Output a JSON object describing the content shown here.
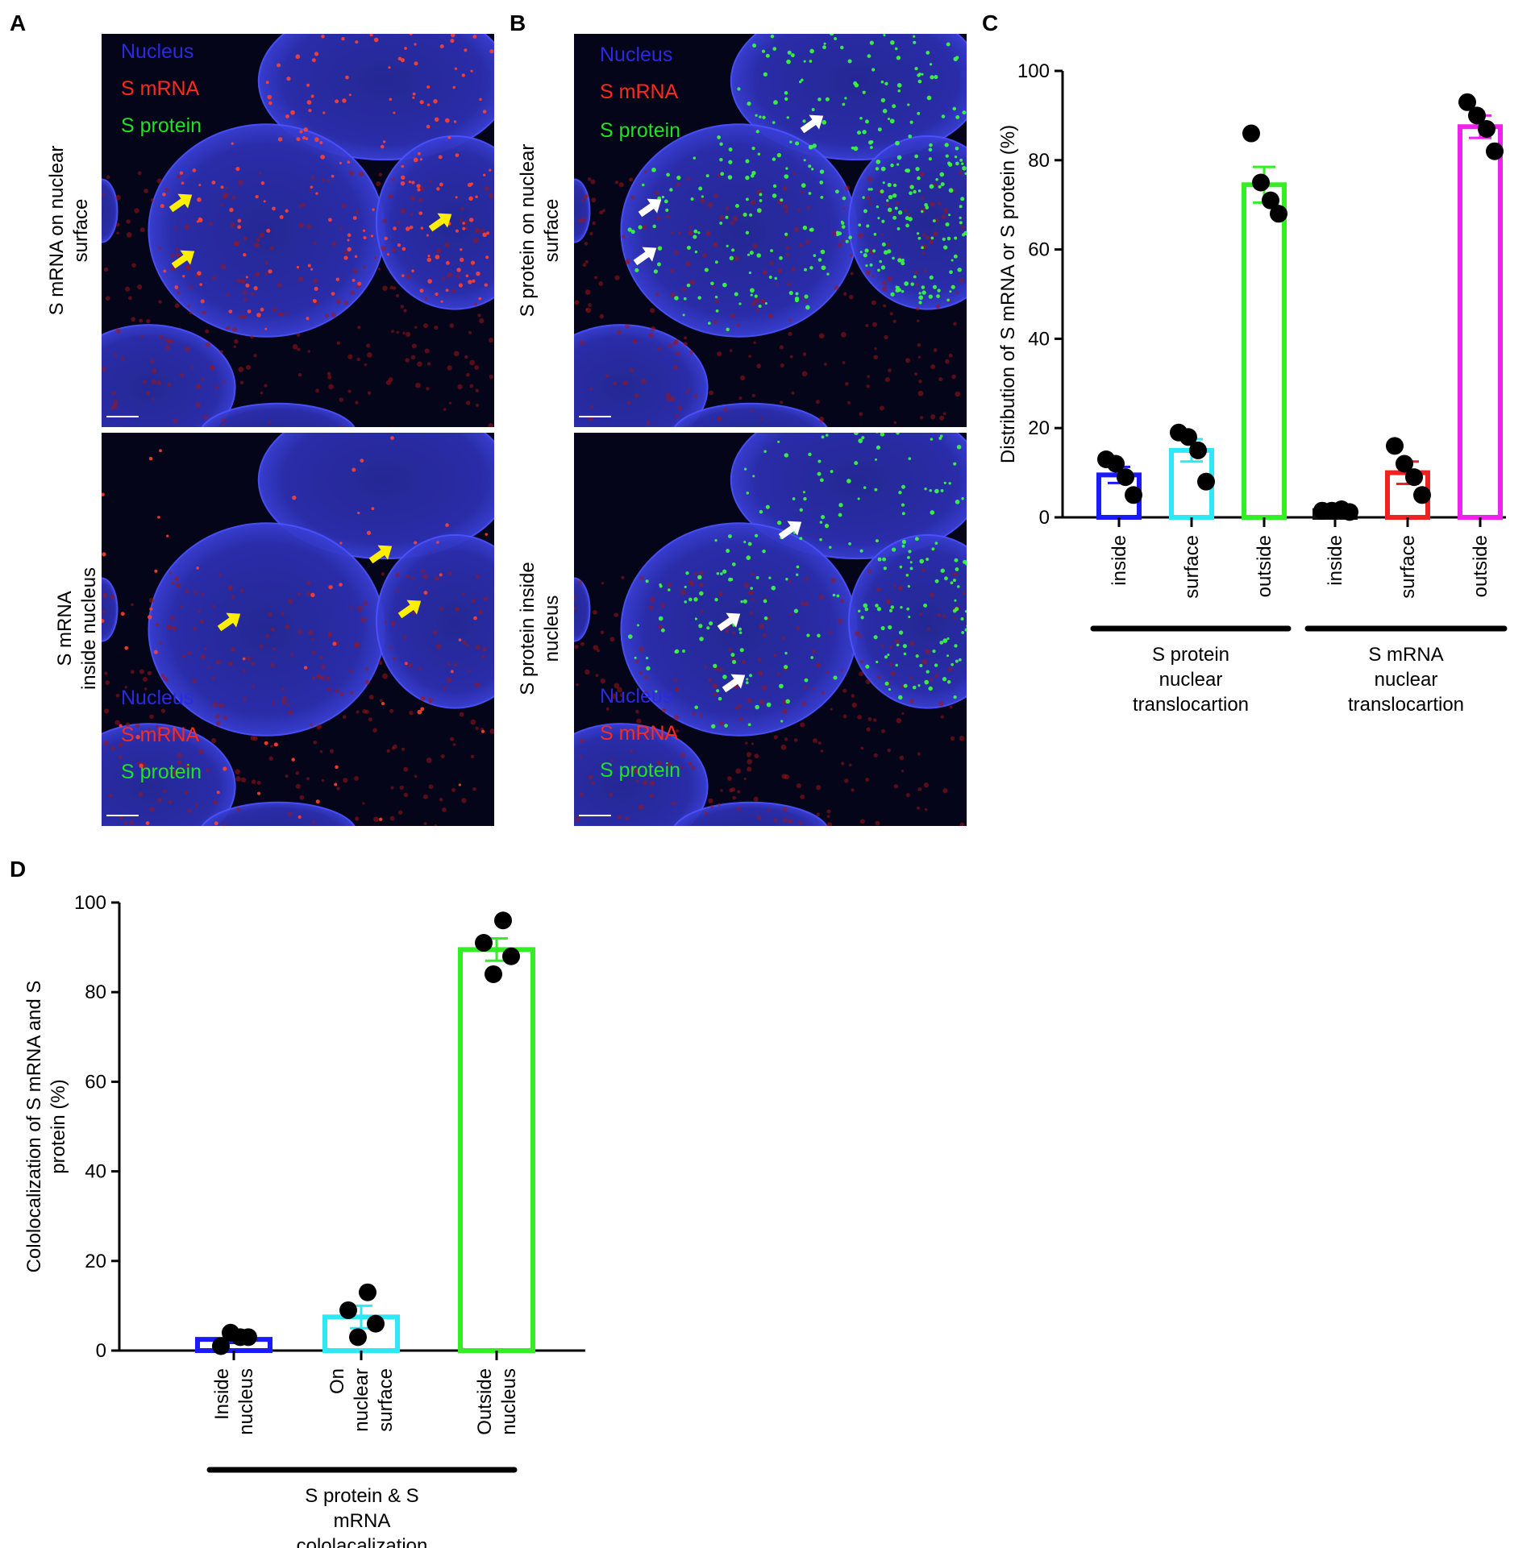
{
  "panels": {
    "A": {
      "letter": "A",
      "top": {
        "row_label": [
          "S mRNA on nuclear",
          "surface"
        ],
        "legend": [
          "Nucleus",
          "S mRNA",
          "S protein"
        ]
      },
      "bottom": {
        "row_label": [
          "S mRNA",
          "inside nucleus"
        ],
        "legend": [
          "Nucleus",
          "S mRNA",
          "S protein"
        ]
      }
    },
    "B": {
      "letter": "B",
      "top": {
        "row_label": [
          "S protein on nuclear",
          "surface"
        ],
        "legend": [
          "Nucleus",
          "S mRNA",
          "S protein"
        ]
      },
      "bottom": {
        "row_label": [
          "S protein inside",
          "nucleus"
        ],
        "legend": [
          "Nucleus",
          "S mRNA",
          "S protein"
        ]
      }
    },
    "C": {
      "letter": "C"
    },
    "D": {
      "letter": "D"
    }
  },
  "colors": {
    "nucleus": "#2a2ae0",
    "mrna": "#ff2a1a",
    "protein": "#22e022",
    "blue_bar": "#1a1aff",
    "cyan_bar": "#2ee8f5",
    "green_bar": "#33ee22",
    "red_bar": "#ee2222",
    "magenta_bar": "#ee22ee",
    "arrow_yellow": "#ffee00",
    "arrow_white": "#ffffff"
  },
  "chart_data": [
    {
      "panel": "C",
      "type": "bar",
      "ylabel": "Distribution of S mRNA or S protein (%)",
      "ylim": [
        0,
        100
      ],
      "yticks": [
        0,
        20,
        40,
        60,
        80,
        100
      ],
      "categories": [
        "inside",
        "surface",
        "outside",
        "inside",
        "surface",
        "outside"
      ],
      "values": [
        9.5,
        15,
        74.5,
        1.5,
        10,
        87.5
      ],
      "errors": [
        1.8,
        2.5,
        4,
        0.3,
        2.5,
        2.5
      ],
      "points": [
        [
          13,
          12,
          9,
          5
        ],
        [
          19,
          18,
          15,
          8
        ],
        [
          86,
          75,
          71,
          68
        ],
        [
          1.5,
          1.5,
          1.8,
          1.2
        ],
        [
          16,
          12,
          9,
          5
        ],
        [
          93,
          90,
          87,
          82
        ]
      ],
      "bar_colors": [
        "#1a1aff",
        "#2ee8f5",
        "#33ee22",
        "#111111",
        "#ee2222",
        "#ee22ee"
      ],
      "groups": [
        {
          "label": [
            "S protein",
            "nuclear",
            "translocartion"
          ]
        },
        {
          "label": [
            "S mRNA",
            "nuclear",
            "translocartion"
          ]
        }
      ]
    },
    {
      "panel": "D",
      "type": "bar",
      "ylabel": [
        "Cololocalization of S mRNA and S",
        "protein (%)"
      ],
      "ylim": [
        0,
        100
      ],
      "yticks": [
        0,
        20,
        40,
        60,
        80,
        100
      ],
      "categories": [
        [
          "Inside",
          "nucleus"
        ],
        [
          "On",
          "nuclear",
          "surface"
        ],
        [
          "Outside",
          "nucleus"
        ]
      ],
      "values": [
        2.5,
        7.5,
        89.5
      ],
      "errors": [
        0.8,
        2.5,
        2.5
      ],
      "points": [
        [
          1,
          4,
          3,
          3
        ],
        [
          9,
          3,
          13,
          6
        ],
        [
          91,
          84,
          96,
          88
        ]
      ],
      "bar_colors": [
        "#1a1aff",
        "#2ee8f5",
        "#33ee22"
      ],
      "groups": [
        {
          "label": [
            "S protein & S",
            "mRNA",
            "cololacalization"
          ]
        }
      ]
    }
  ]
}
